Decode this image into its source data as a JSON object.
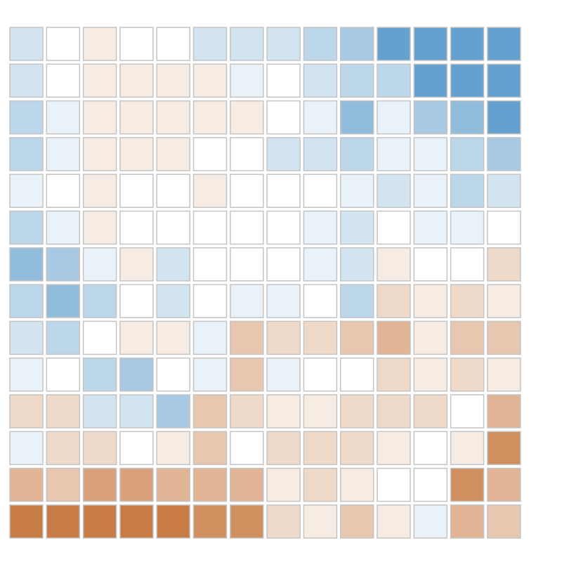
{
  "chart_data": {
    "type": "heatmap",
    "rows": 14,
    "cols": 14,
    "colors": {
      "negative_max": "#c0692a",
      "neutral": "#ffffff",
      "positive_max": "#4f93c7",
      "cell_border": "#c4c4c4"
    },
    "value_range": [
      -8,
      8
    ],
    "values": [
      [
        2,
        0,
        -1,
        0,
        0,
        2,
        2,
        2,
        3,
        4,
        7,
        7,
        7,
        7
      ],
      [
        2,
        0,
        -1,
        -1,
        -1,
        -1,
        1,
        0,
        2,
        3,
        3,
        7,
        7,
        7
      ],
      [
        3,
        1,
        -1,
        -1,
        -1,
        -1,
        -1,
        0,
        1,
        5,
        1,
        4,
        5,
        7
      ],
      [
        3,
        1,
        -1,
        -1,
        -1,
        0,
        0,
        2,
        2,
        3,
        1,
        1,
        3,
        4
      ],
      [
        1,
        0,
        -1,
        0,
        0,
        -1,
        0,
        0,
        0,
        1,
        2,
        1,
        3,
        2
      ],
      [
        3,
        1,
        -1,
        0,
        0,
        0,
        0,
        0,
        1,
        2,
        0,
        1,
        1,
        0
      ],
      [
        5,
        4,
        1,
        -1,
        2,
        0,
        0,
        0,
        1,
        2,
        -1,
        0,
        0,
        -2
      ],
      [
        3,
        5,
        3,
        0,
        2,
        0,
        1,
        1,
        0,
        3,
        -2,
        -1,
        -2,
        -1
      ],
      [
        2,
        3,
        0,
        -1,
        -1,
        1,
        -3,
        -2,
        -2,
        -3,
        -4,
        -1,
        -3,
        -3
      ],
      [
        1,
        0,
        3,
        4,
        0,
        1,
        -3,
        1,
        0,
        0,
        -2,
        -1,
        -2,
        -1
      ],
      [
        -2,
        -2,
        2,
        2,
        4,
        -3,
        -2,
        -1,
        -1,
        -2,
        -2,
        -2,
        0,
        -4
      ],
      [
        1,
        -2,
        -2,
        0,
        -1,
        -3,
        0,
        -2,
        -2,
        -2,
        -1,
        0,
        -1,
        -6
      ],
      [
        -4,
        -3,
        -5,
        -5,
        -4,
        -4,
        -4,
        -1,
        -2,
        -1,
        0,
        0,
        -6,
        -4
      ],
      [
        -7,
        -7,
        -7,
        -7,
        -7,
        -6,
        -6,
        -2,
        -1,
        -3,
        -1,
        1,
        -4,
        -3
      ]
    ]
  }
}
